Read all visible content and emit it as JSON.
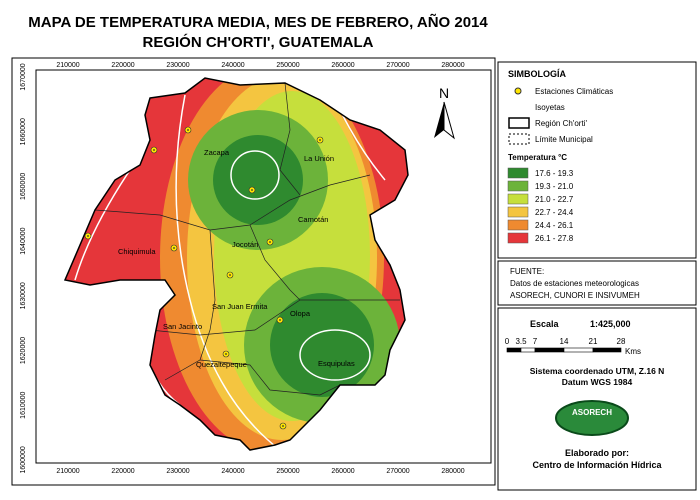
{
  "title": [
    "MAPA DE TEMPERATURA MEDIA, MES DE FEBRERO, AÑO 2014",
    "REGIÓN CH'ORTI', GUATEMALA"
  ],
  "map": {
    "x_coords": [
      "210000",
      "220000",
      "230000",
      "240000",
      "250000",
      "260000",
      "270000",
      "280000"
    ],
    "y_coords": [
      "1670000",
      "1660000",
      "1650000",
      "1640000",
      "1630000",
      "1620000",
      "1610000",
      "1600000"
    ],
    "north": "N",
    "places": [
      "Zacapa",
      "La Unión",
      "Camotán",
      "Jocotán",
      "Chiquimula",
      "San Juan Ermita",
      "Olopa",
      "San Jacinto",
      "Esquipulas",
      "Quezaltepeque"
    ]
  },
  "legend": {
    "title": "SIMBOLOGÍA",
    "items": [
      "Estaciones Climáticas",
      "Isoyetas",
      "Región Ch'orti'",
      "Límite Municipal"
    ],
    "temperature_title": "Temperatura °C",
    "classes": [
      {
        "label": "17.6 - 19.3",
        "color": "#2f8a2f"
      },
      {
        "label": "19.3 - 21.0",
        "color": "#6cb33a"
      },
      {
        "label": "21.0 - 22.7",
        "color": "#c6df3c"
      },
      {
        "label": "22.7 - 24.4",
        "color": "#f4c540"
      },
      {
        "label": "24.4 - 26.1",
        "color": "#ef8a30"
      },
      {
        "label": "26.1 - 27.8",
        "color": "#e5363a"
      }
    ]
  },
  "source": {
    "title": "FUENTE:",
    "lines": [
      "Datos de estaciones meteorologicas",
      "ASORECH, CUNORI E INSIVUMEH"
    ]
  },
  "scale": {
    "label": "Escala",
    "ratio": "1:425,000",
    "ticks": [
      "0",
      "3.5",
      "7",
      "14",
      "21",
      "28"
    ],
    "unit": "Kms"
  },
  "projection": [
    "Sistema coordenado UTM, Z.16 N",
    "Datum WGS 1984"
  ],
  "logo": "ASORECH",
  "credit": [
    "Elaborado por:",
    "Centro de Información Hídrica"
  ]
}
